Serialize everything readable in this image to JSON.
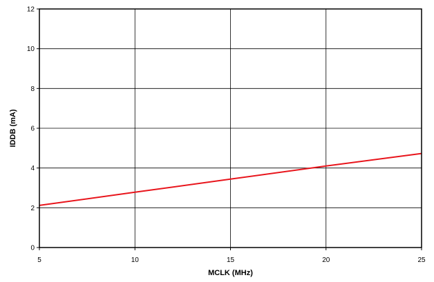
{
  "chart_data": {
    "type": "line",
    "title": "",
    "xlabel": "MCLK (MHz)",
    "ylabel": "IDDB (mA)",
    "xlim": [
      5,
      25
    ],
    "ylim": [
      0,
      12
    ],
    "xticks": [
      5,
      10,
      15,
      20,
      25
    ],
    "yticks": [
      0,
      2,
      4,
      6,
      8,
      10,
      12
    ],
    "grid": true,
    "legend": "none",
    "series": [
      {
        "color": "#e8141b",
        "x": [
          5,
          10,
          15,
          20,
          25
        ],
        "y": [
          2.12,
          2.78,
          3.44,
          4.1,
          4.73
        ]
      }
    ]
  }
}
